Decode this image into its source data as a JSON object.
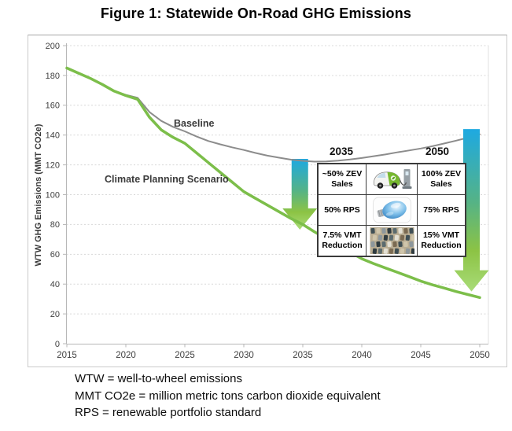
{
  "chart_data": {
    "type": "line",
    "title": "Figure 1: Statewide On-Road GHG Emissions",
    "xlabel": "",
    "ylabel": "WTW GHG Emissions (MMT CO2e)",
    "ylim": [
      0,
      200
    ],
    "y_ticks": [
      0,
      20,
      40,
      60,
      80,
      100,
      120,
      140,
      160,
      180,
      200
    ],
    "x_ticks": [
      2015,
      2020,
      2025,
      2030,
      2035,
      2040,
      2045,
      2050
    ],
    "grid": "horizontal-dotted",
    "legend_position": "inline-labels",
    "series": [
      {
        "name": "Baseline",
        "color": "#8c8c8c",
        "stroke_width": 2,
        "points": [
          [
            2015,
            185
          ],
          [
            2016,
            181.5
          ],
          [
            2017,
            178
          ],
          [
            2018,
            174
          ],
          [
            2019,
            169.5
          ],
          [
            2020,
            167
          ],
          [
            2021,
            165
          ],
          [
            2022,
            155.5
          ],
          [
            2023,
            149.5
          ],
          [
            2024,
            145.5
          ],
          [
            2025,
            142.5
          ],
          [
            2026,
            139
          ],
          [
            2027,
            136
          ],
          [
            2028,
            133.8
          ],
          [
            2029,
            131.8
          ],
          [
            2030,
            130
          ],
          [
            2031,
            128
          ],
          [
            2032,
            126.2
          ],
          [
            2033,
            124.8
          ],
          [
            2034,
            123.5
          ],
          [
            2035,
            122.7
          ],
          [
            2036,
            122.2
          ],
          [
            2037,
            122.3
          ],
          [
            2038,
            122.8
          ],
          [
            2039,
            123.6
          ],
          [
            2040,
            124.6
          ],
          [
            2041,
            125.8
          ],
          [
            2042,
            127
          ],
          [
            2043,
            128.4
          ],
          [
            2044,
            129.7
          ],
          [
            2045,
            131
          ],
          [
            2046,
            132.6
          ],
          [
            2047,
            134.4
          ],
          [
            2048,
            136.3
          ],
          [
            2049,
            138.3
          ],
          [
            2050,
            140.5
          ]
        ]
      },
      {
        "name": "Climate Planning Scenario",
        "color": "#7cbe4a",
        "stroke_width": 3.5,
        "points": [
          [
            2015,
            185
          ],
          [
            2016,
            181.5
          ],
          [
            2017,
            178
          ],
          [
            2018,
            174
          ],
          [
            2019,
            169.5
          ],
          [
            2020,
            166.5
          ],
          [
            2021,
            164
          ],
          [
            2022,
            152
          ],
          [
            2023,
            143.5
          ],
          [
            2024,
            138.5
          ],
          [
            2025,
            134.5
          ],
          [
            2026,
            128
          ],
          [
            2027,
            121.5
          ],
          [
            2028,
            115
          ],
          [
            2029,
            108.5
          ],
          [
            2030,
            102
          ],
          [
            2031,
            97.5
          ],
          [
            2032,
            93
          ],
          [
            2033,
            88.5
          ],
          [
            2034,
            84
          ],
          [
            2035,
            80
          ],
          [
            2036,
            75
          ],
          [
            2037,
            70.5
          ],
          [
            2038,
            66
          ],
          [
            2039,
            61.5
          ],
          [
            2040,
            57
          ],
          [
            2041,
            53.8
          ],
          [
            2042,
            50.8
          ],
          [
            2043,
            48
          ],
          [
            2044,
            45
          ],
          [
            2045,
            42
          ],
          [
            2046,
            39.5
          ],
          [
            2047,
            37.3
          ],
          [
            2048,
            35
          ],
          [
            2049,
            33
          ],
          [
            2050,
            31
          ]
        ]
      }
    ],
    "arrows": [
      {
        "name": "2035-reduction-arrow",
        "year": 2034.75,
        "from_value": 124,
        "to_value": 76.5
      },
      {
        "name": "2050-reduction-arrow",
        "year": 2049.3,
        "from_value": 144,
        "to_value": 35
      }
    ],
    "arrow_gradient": [
      {
        "offset": 0,
        "color": "#1ea9e1"
      },
      {
        "offset": 0.45,
        "color": "#55b386"
      },
      {
        "offset": 0.75,
        "color": "#8cc344"
      },
      {
        "offset": 1,
        "color": "#a9dc78"
      }
    ]
  },
  "inset_table": {
    "col_headers": [
      "2035",
      "2050"
    ],
    "rows": [
      {
        "y2035": "~50% ZEV Sales",
        "image": "electric-car",
        "y2050": "100% ZEV Sales"
      },
      {
        "y2035": "50% RPS",
        "image": "lightbulb",
        "y2050": "75% RPS"
      },
      {
        "y2035": "7.5% VMT Reduction",
        "image": "traffic",
        "y2050": "15% VMT Reduction"
      }
    ]
  },
  "footnotes": [
    "WTW = well-to-wheel emissions",
    "MMT CO2e = million metric tons carbon dioxide equivalent",
    "RPS = renewable portfolio standard"
  ]
}
